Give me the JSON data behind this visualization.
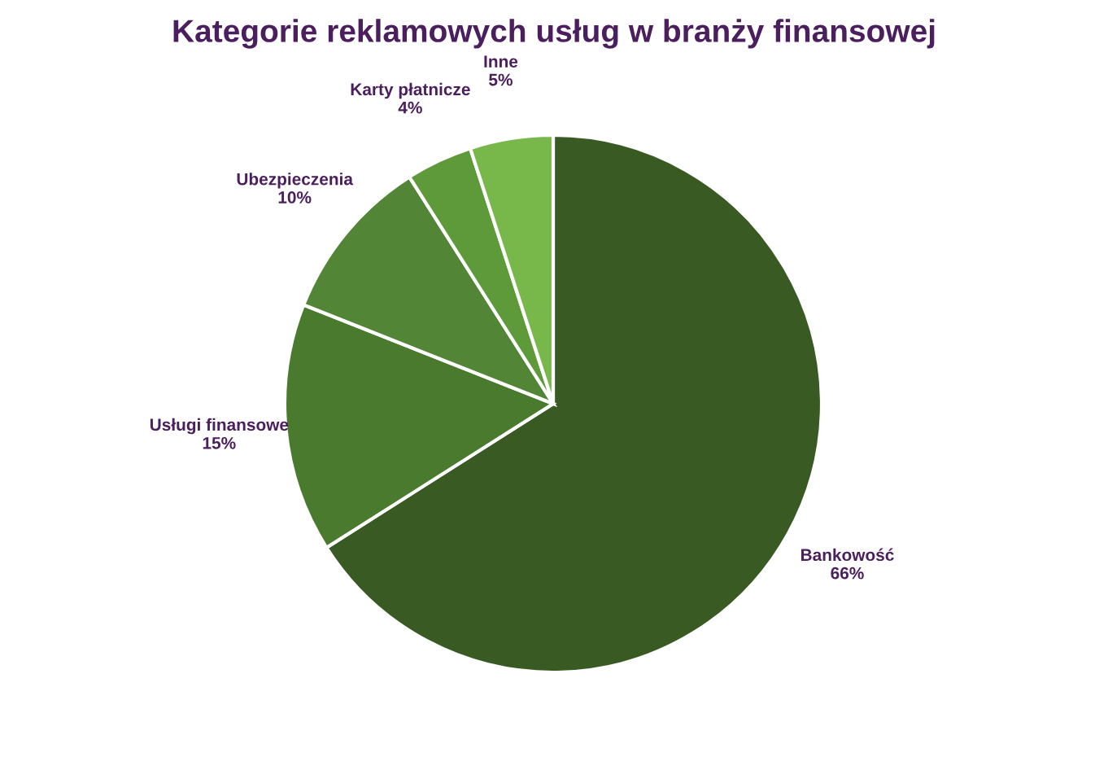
{
  "chart_data": {
    "type": "pie",
    "title": "Kategorie reklamowych usług w branży finansowej",
    "categories": [
      "Bankowość",
      "Usługi finansowe",
      "Ubezpieczenia",
      "Karty płatnicze",
      "Inne"
    ],
    "values": [
      66,
      15,
      10,
      4,
      5
    ],
    "value_labels": [
      "66%",
      "15%",
      "10%",
      "4%",
      "5%"
    ],
    "colors": [
      "#3a5a24",
      "#4a7a2e",
      "#528535",
      "#5e9a3a",
      "#78b84a"
    ],
    "legend": false
  }
}
